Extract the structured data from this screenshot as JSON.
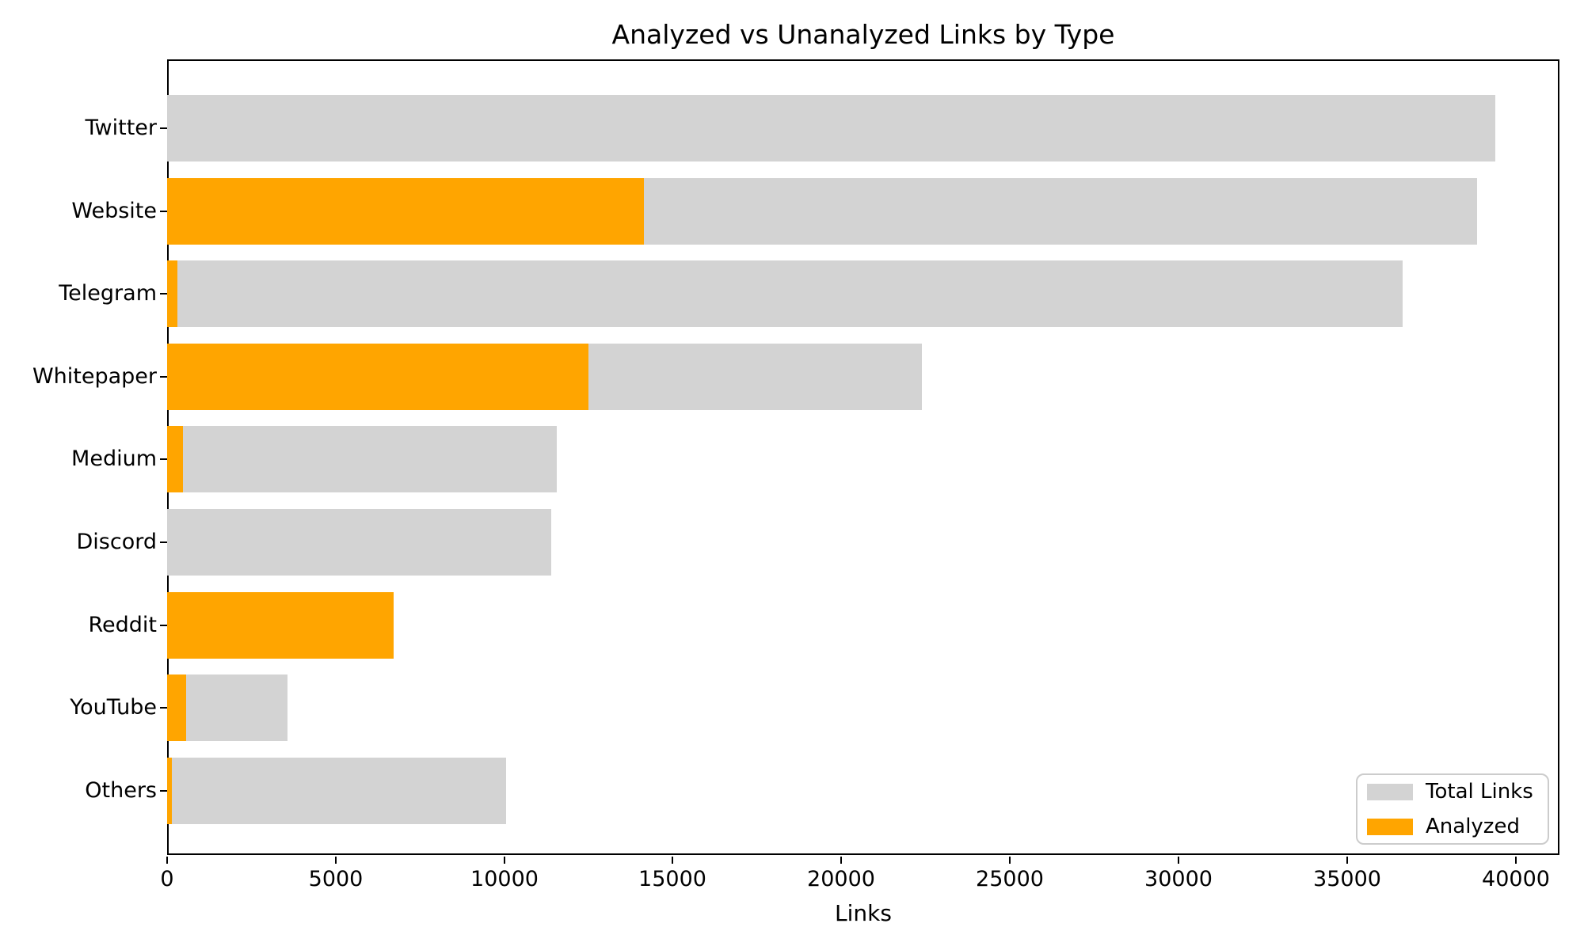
{
  "chart_data": {
    "type": "bar",
    "orientation": "horizontal",
    "title": "Analyzed vs Unanalyzed Links by Type",
    "xlabel": "Links",
    "ylabel": "",
    "categories": [
      "Twitter",
      "Website",
      "Telegram",
      "Whitepaper",
      "Medium",
      "Discord",
      "Reddit",
      "YouTube",
      "Others"
    ],
    "series": [
      {
        "name": "Total Links",
        "color": "#d3d3d3",
        "values": [
          39400,
          38850,
          36650,
          22400,
          11550,
          11400,
          6720,
          3570,
          10050
        ]
      },
      {
        "name": "Analyzed",
        "color": "#ffa500",
        "values": [
          0,
          14150,
          300,
          12500,
          470,
          0,
          6720,
          560,
          140
        ]
      }
    ],
    "xticks": [
      0,
      5000,
      10000,
      15000,
      20000,
      25000,
      30000,
      35000,
      40000
    ],
    "xtick_labels": [
      "0",
      "5000",
      "10000",
      "15000",
      "20000",
      "25000",
      "30000",
      "35000",
      "40000"
    ],
    "xlim": [
      0,
      41300
    ],
    "grid": false,
    "legend_position": "lower right",
    "background_color": "#ffffff",
    "spine_color": "#000000"
  }
}
